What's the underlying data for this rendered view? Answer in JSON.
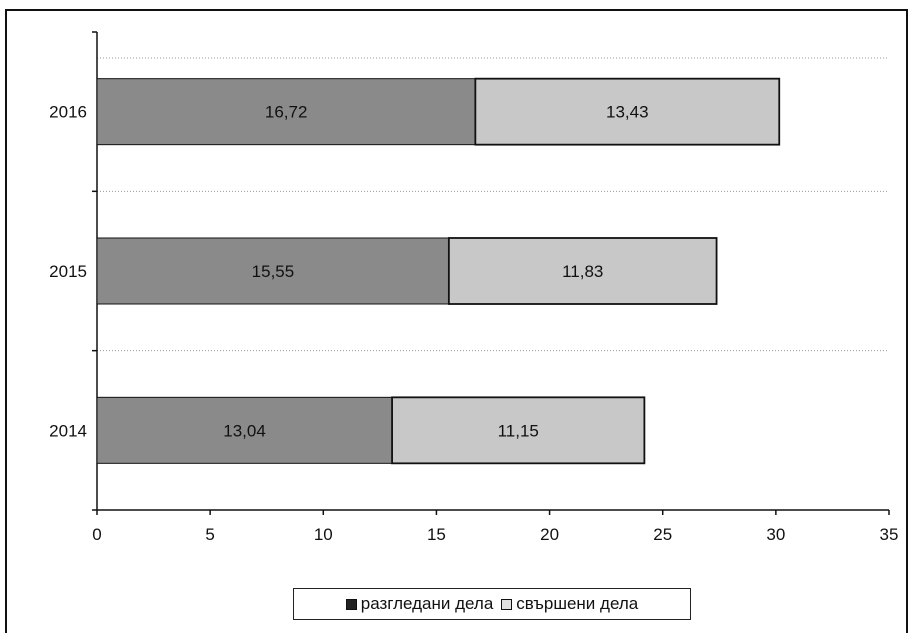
{
  "chart_data": {
    "type": "bar",
    "orientation": "horizontal",
    "stacked": true,
    "categories": [
      "2014",
      "2015",
      "2016"
    ],
    "series": [
      {
        "name": "разгледани дела",
        "values": [
          13.04,
          15.55,
          16.72
        ],
        "labels": [
          "13,04",
          "15,55",
          "16,72"
        ],
        "color": "#8a8a8a"
      },
      {
        "name": "свършени дела",
        "values": [
          11.15,
          11.83,
          13.43
        ],
        "labels": [
          "11,15",
          "11,83",
          "13,43"
        ],
        "color": "#c8c8c8"
      }
    ],
    "x_ticks": [
      "0",
      "5",
      "10",
      "15",
      "20",
      "25",
      "30",
      "35"
    ],
    "xlim": [
      0,
      35
    ],
    "grid": true,
    "legend_position": "bottom"
  }
}
